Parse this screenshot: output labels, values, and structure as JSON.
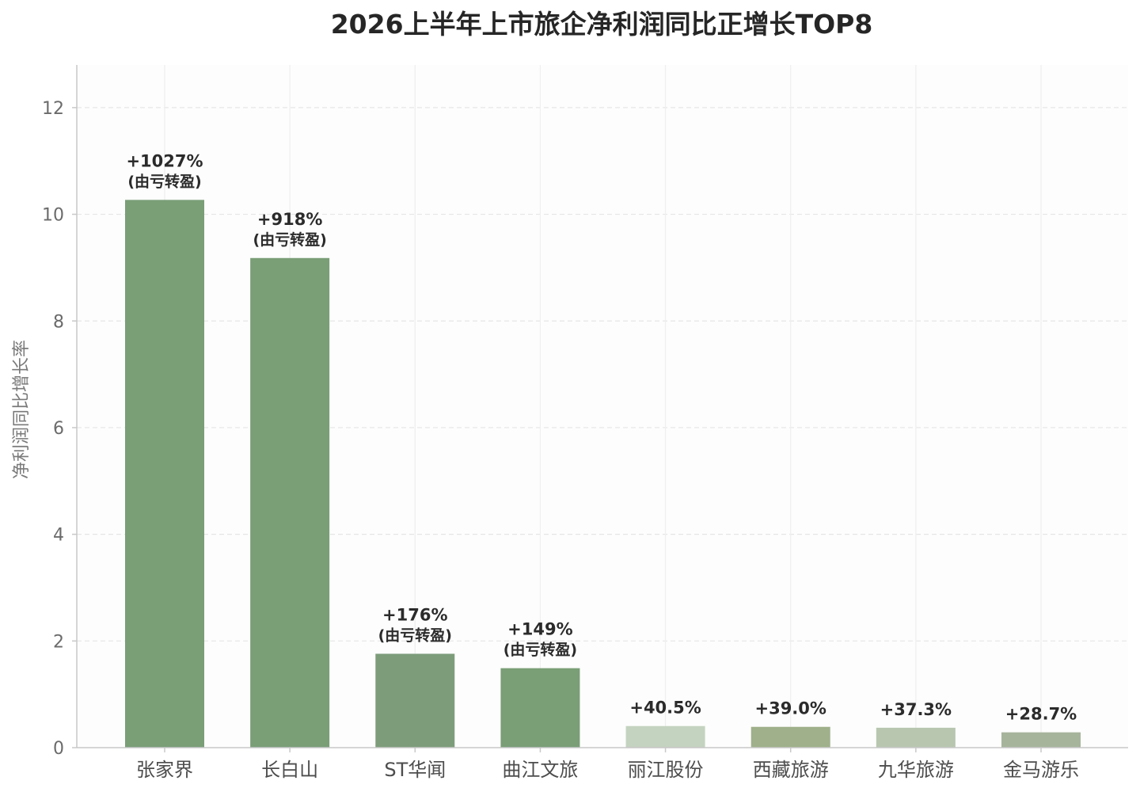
{
  "chart_data": {
    "type": "bar",
    "title": "2026上半年上市旅企净利润同比正增长TOP8",
    "xlabel": "",
    "ylabel": "净利润同比增长率",
    "ylim": [
      0,
      12.8
    ],
    "yticks": [
      0,
      2,
      4,
      6,
      8,
      10,
      12
    ],
    "grid": true,
    "categories": [
      "张家界",
      "长白山",
      "ST华闻",
      "曲江文旅",
      "丽江股份",
      "西藏旅游",
      "九华旅游",
      "金马游乐"
    ],
    "values": [
      10.27,
      9.18,
      1.76,
      1.49,
      0.405,
      0.39,
      0.373,
      0.287
    ],
    "value_labels": [
      "+1027%",
      "+918%",
      "+176%",
      "+149%",
      "+40.5%",
      "+39.0%",
      "+37.3%",
      "+28.7%"
    ],
    "notes": [
      "(由亏转盈)",
      "(由亏转盈)",
      "(由亏转盈)",
      "(由亏转盈)",
      "",
      "",
      "",
      ""
    ],
    "colors": [
      "#7a9e76",
      "#7a9e76",
      "#7d9d7a",
      "#7a9e76",
      "#c4d3c0",
      "#9fb08a",
      "#b8c6b0",
      "#a6b49c"
    ],
    "plot_background": "#fdfdfd",
    "grid_color": "#e6e6e6",
    "axis_color": "#c8c8c8"
  }
}
